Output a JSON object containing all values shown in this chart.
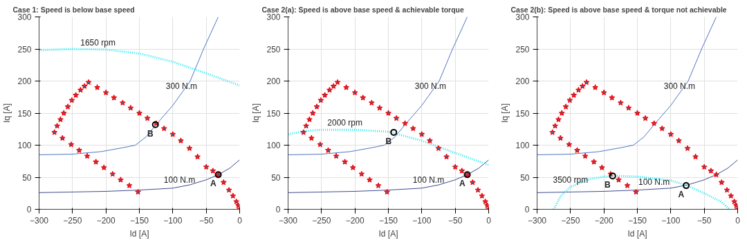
{
  "chart_data": [
    {
      "type": "line",
      "title": "Case 1: Speed is below base speed",
      "xlabel": "Id [A]",
      "ylabel": "Iq [A]",
      "xlim": [
        -300,
        0
      ],
      "ylim": [
        0,
        300
      ],
      "xticks": [
        -300,
        -250,
        -200,
        -150,
        -100,
        -50,
        0
      ],
      "yticks": [
        0,
        50,
        100,
        150,
        200,
        250,
        300
      ],
      "grid": true,
      "series": [
        {
          "type": "line",
          "color": "#4f75c0",
          "x": [
            -300,
            -250,
            -207,
            -175,
            -156,
            -140,
            -125,
            -100,
            -74,
            -54,
            -32
          ],
          "values": [
            85,
            86,
            90,
            96,
            100,
            113,
            132,
            162,
            200,
            250,
            300
          ]
        },
        {
          "type": "line",
          "color": "#3d4a8f",
          "x": [
            -300,
            -200,
            -150,
            -100,
            -75,
            -50,
            -32,
            -15,
            0
          ],
          "values": [
            26,
            28,
            30,
            33,
            38,
            46,
            54,
            64,
            77
          ]
        },
        {
          "type": "line",
          "color": "#22e6f0",
          "line_style": "dotted",
          "x": [
            -300,
            -250,
            -200,
            -150,
            -100,
            -50,
            0
          ],
          "values": [
            248,
            250,
            249,
            243,
            230,
            212,
            193
          ]
        },
        {
          "type": "scatter",
          "color": "#ff0000",
          "marker": "star",
          "x": [
            -152,
            -165,
            -178,
            -190,
            -203,
            -215,
            -228,
            -240,
            -252,
            -265,
            -277,
            -273,
            -268,
            -263,
            -257,
            -251,
            -245,
            -238,
            -232,
            -226,
            -213,
            -200,
            -188,
            -175,
            -163,
            -150,
            -138,
            -125,
            -113,
            -100,
            -88,
            -75,
            -63,
            -50,
            -40,
            -32,
            -24,
            -16,
            -10,
            -5,
            -2,
            0
          ],
          "values": [
            27,
            37,
            46,
            55,
            65,
            74,
            83,
            92,
            101,
            111,
            120,
            130,
            140,
            150,
            160,
            170,
            178,
            186,
            192,
            198,
            190,
            182,
            174,
            166,
            158,
            150,
            142,
            134,
            126,
            117,
            107,
            95,
            82,
            66,
            60,
            54,
            42,
            30,
            21,
            12,
            6,
            0
          ]
        },
        {
          "type": "scatter",
          "color": "#000000",
          "marker": "circle",
          "x": [
            -32,
            -126
          ],
          "values": [
            54,
            132
          ]
        }
      ],
      "annotations": [
        {
          "text": "1650 rpm",
          "x": -212,
          "y": 249
        },
        {
          "text": "300 N.m",
          "x": -87,
          "y": 181
        },
        {
          "text": "100 N.m",
          "x": -90,
          "y": 35
        },
        {
          "text": "A",
          "x": -32,
          "y": 54
        },
        {
          "text": "B",
          "x": -126,
          "y": 132
        }
      ]
    },
    {
      "type": "line",
      "title": "Case 2(a): Speed is above base speed & achievable torque",
      "xlabel": "Id [A]",
      "ylabel": "Iq [A]",
      "xlim": [
        -300,
        0
      ],
      "ylim": [
        0,
        300
      ],
      "xticks": [
        -300,
        -250,
        -200,
        -150,
        -100,
        -50,
        0
      ],
      "yticks": [
        0,
        50,
        100,
        150,
        200,
        250,
        300
      ],
      "grid": true,
      "series": [
        {
          "type": "line",
          "color": "#4f75c0",
          "x": [
            -300,
            -250,
            -207,
            -175,
            -156,
            -140,
            -125,
            -100,
            -74,
            -54,
            -32
          ],
          "values": [
            85,
            86,
            90,
            96,
            100,
            113,
            132,
            162,
            200,
            250,
            300
          ]
        },
        {
          "type": "line",
          "color": "#3d4a8f",
          "x": [
            -300,
            -200,
            -150,
            -100,
            -75,
            -50,
            -32,
            -15,
            0
          ],
          "values": [
            26,
            28,
            30,
            33,
            38,
            46,
            54,
            64,
            77
          ]
        },
        {
          "type": "line",
          "color": "#22e6f0",
          "line_style": "dotted",
          "x": [
            -300,
            -275,
            -250,
            -200,
            -150,
            -100,
            -50,
            0
          ],
          "values": [
            117,
            122,
            124,
            124,
            121,
            107,
            88,
            69
          ]
        },
        {
          "type": "scatter",
          "color": "#ff0000",
          "marker": "star",
          "x": [
            -152,
            -165,
            -178,
            -190,
            -203,
            -215,
            -228,
            -240,
            -252,
            -265,
            -277,
            -273,
            -268,
            -263,
            -257,
            -251,
            -245,
            -238,
            -232,
            -226,
            -213,
            -200,
            -188,
            -175,
            -163,
            -150,
            -138,
            -125,
            -113,
            -100,
            -88,
            -75,
            -63,
            -50,
            -40,
            -32,
            -24,
            -16,
            -10,
            -5,
            -2,
            0
          ],
          "values": [
            27,
            37,
            46,
            55,
            65,
            74,
            83,
            92,
            101,
            111,
            120,
            130,
            140,
            150,
            160,
            170,
            178,
            186,
            192,
            198,
            190,
            182,
            174,
            166,
            158,
            150,
            142,
            134,
            126,
            117,
            107,
            95,
            82,
            66,
            60,
            54,
            42,
            30,
            21,
            12,
            6,
            0
          ]
        },
        {
          "type": "scatter",
          "color": "#000000",
          "marker": "circle",
          "x": [
            -32,
            -142
          ],
          "values": [
            54,
            120
          ]
        }
      ],
      "annotations": [
        {
          "text": "2000 rpm",
          "x": -215,
          "y": 124
        },
        {
          "text": "300 N.m",
          "x": -87,
          "y": 181
        },
        {
          "text": "100 N.m",
          "x": -90,
          "y": 35
        },
        {
          "text": "A",
          "x": -32,
          "y": 54
        },
        {
          "text": "B",
          "x": -142,
          "y": 120
        }
      ]
    },
    {
      "type": "line",
      "title": "Case 2(b): Speed is above base speed & torque not achievable",
      "xlabel": "Id [A]",
      "ylabel": "Iq [A]",
      "xlim": [
        -300,
        0
      ],
      "ylim": [
        0,
        300
      ],
      "xticks": [
        -300,
        -250,
        -200,
        -150,
        -100,
        -50,
        0
      ],
      "yticks": [
        0,
        50,
        100,
        150,
        200,
        250,
        300
      ],
      "grid": true,
      "series": [
        {
          "type": "line",
          "color": "#4f75c0",
          "x": [
            -300,
            -250,
            -207,
            -175,
            -156,
            -140,
            -125,
            -100,
            -74,
            -54,
            -32
          ],
          "values": [
            85,
            86,
            90,
            96,
            100,
            113,
            132,
            162,
            200,
            250,
            300
          ]
        },
        {
          "type": "line",
          "color": "#3d4a8f",
          "x": [
            -300,
            -200,
            -150,
            -100,
            -75,
            -50,
            -32,
            -15,
            0
          ],
          "values": [
            26,
            28,
            30,
            33,
            38,
            46,
            54,
            64,
            77
          ]
        },
        {
          "type": "line",
          "color": "#22e6f0",
          "line_style": "dotted",
          "x": [
            -275,
            -265,
            -250,
            -225,
            -200,
            -175,
            -150,
            -100,
            -75,
            -50,
            -25,
            -12
          ],
          "values": [
            0,
            20,
            35,
            46,
            51,
            52,
            51,
            45,
            37,
            25,
            12,
            0
          ]
        },
        {
          "type": "scatter",
          "color": "#ff0000",
          "marker": "star",
          "x": [
            -152,
            -165,
            -178,
            -190,
            -203,
            -215,
            -228,
            -240,
            -252,
            -265,
            -277,
            -273,
            -268,
            -263,
            -257,
            -251,
            -245,
            -238,
            -232,
            -226,
            -213,
            -200,
            -188,
            -175,
            -163,
            -150,
            -138,
            -125,
            -113,
            -100,
            -88,
            -75,
            -63,
            -50,
            -40,
            -32,
            -24,
            -16,
            -10,
            -5,
            -2,
            0
          ],
          "values": [
            27,
            37,
            46,
            55,
            65,
            74,
            83,
            92,
            101,
            111,
            120,
            130,
            140,
            150,
            160,
            170,
            178,
            186,
            192,
            198,
            190,
            182,
            174,
            166,
            158,
            150,
            142,
            134,
            126,
            117,
            107,
            95,
            82,
            66,
            60,
            54,
            42,
            30,
            21,
            12,
            6,
            0
          ]
        },
        {
          "type": "scatter",
          "color": "#000000",
          "marker": "circle",
          "x": [
            -77,
            -187
          ],
          "values": [
            37,
            52
          ]
        }
      ],
      "annotations": [
        {
          "text": "3500 rpm",
          "x": -250,
          "y": 35
        },
        {
          "text": "300 N.m",
          "x": -87,
          "y": 181
        },
        {
          "text": "100 N.m",
          "x": -125,
          "y": 32
        },
        {
          "text": "A",
          "x": -77,
          "y": 37
        },
        {
          "text": "B",
          "x": -187,
          "y": 52
        }
      ]
    }
  ]
}
